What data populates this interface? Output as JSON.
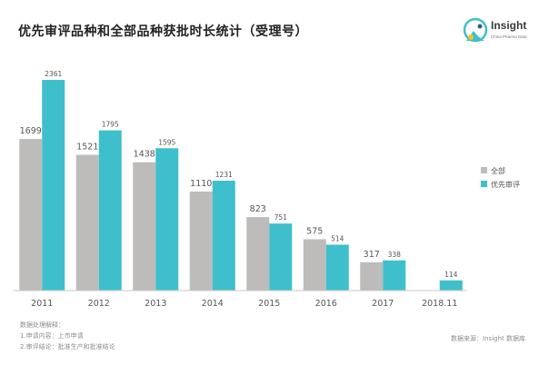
{
  "title": "优先审评品种和全部品种获批时长统计（受理号）",
  "logo": {
    "name": "Insight",
    "subtitle": "China Pharma Data"
  },
  "colors": {
    "all": "#bebbbb",
    "priority": "#3ebfcb",
    "axis": "#c8c8c8",
    "text": "#555555",
    "title": "#222222"
  },
  "notes": {
    "header": "数据处理解释：",
    "line1": "1.申请内容：上市申请",
    "line2": "2.审评结论：批准生产和批准结论"
  },
  "source": "数据来源：Insight 数据库",
  "chart_data": {
    "type": "bar",
    "categories": [
      "2011",
      "2012",
      "2013",
      "2014",
      "2015",
      "2016",
      "2017",
      "2018.11"
    ],
    "series": [
      {
        "name": "全部",
        "values": [
          1699,
          1521,
          1438,
          1110,
          823,
          575,
          317,
          null
        ]
      },
      {
        "name": "优先审评",
        "values": [
          2361,
          1795,
          1595,
          1231,
          751,
          514,
          338,
          114
        ]
      }
    ],
    "ylim": [
      0,
      2361
    ],
    "legend_position": "right",
    "grid": false
  }
}
